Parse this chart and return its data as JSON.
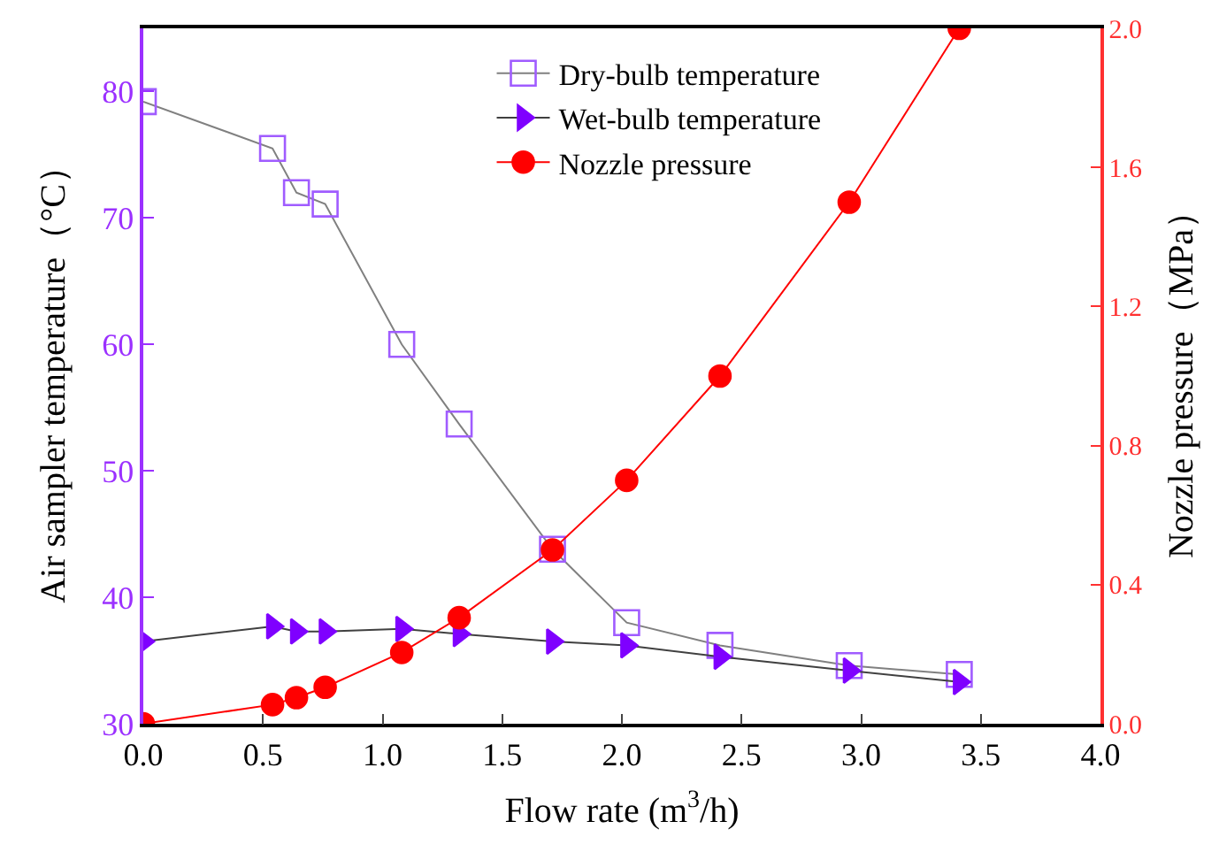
{
  "chart_data": {
    "type": "line",
    "xlabel": "Flow rate (m$^{3}$/h)",
    "ylabel": "Air sampler temperature（°C）",
    "y2label": "Nozzle pressure（MPa）",
    "x": [
      0,
      0.54,
      0.64,
      0.76,
      1.08,
      1.32,
      1.71,
      2.02,
      2.41,
      2.95,
      3.41
    ],
    "series": [
      {
        "name": "Dry-bulb temperature",
        "color": "#a05cff",
        "marker": "square",
        "values": [
          79.2,
          75.5,
          72.0,
          71.1,
          60.0,
          53.7,
          43.8,
          38.0,
          36.2,
          34.6,
          33.9
        ]
      },
      {
        "name": "Wet-bulb temperature",
        "color": "#7f00ff",
        "marker": "triangle",
        "values": [
          36.5,
          37.7,
          37.3,
          37.3,
          37.5,
          37.1,
          36.5,
          36.2,
          35.3,
          34.2,
          33.3
        ]
      },
      {
        "name": "Nozzle pressure",
        "color": "#ff0000",
        "marker": "circle",
        "axis": "y2",
        "values": [
          0.0,
          0.055,
          0.075,
          0.105,
          0.205,
          0.305,
          0.5,
          0.7,
          1.0,
          1.5,
          2.0
        ]
      }
    ],
    "xlim": [
      0,
      4
    ],
    "xticks": [
      {
        "value": 0,
        "label": "0.0"
      },
      {
        "value": 0.5,
        "label": "0.5"
      },
      {
        "value": 1,
        "label": "1.0"
      },
      {
        "value": 1.5,
        "label": "1.5"
      },
      {
        "value": 2,
        "label": "2.0"
      },
      {
        "value": 2.5,
        "label": "2.5"
      },
      {
        "value": 3,
        "label": "3.0"
      },
      {
        "value": 3.5,
        "label": "3.5"
      },
      {
        "value": 4,
        "label": "4.0"
      }
    ],
    "ylim": [
      30,
      85
    ],
    "yticks": [
      30,
      40,
      50,
      60,
      70,
      80
    ],
    "y2lim": [
      0,
      2.0
    ],
    "y2ticks": [
      {
        "value": 0,
        "label": "0.0"
      },
      {
        "value": 0.4,
        "label": "0.4"
      },
      {
        "value": 0.8,
        "label": "0.8"
      },
      {
        "value": 1.2,
        "label": "1.2"
      },
      {
        "value": 1.6,
        "label": "1.6"
      },
      {
        "value": 2.0,
        "label": "2.0"
      }
    ],
    "legend": "top",
    "line_style": "solid"
  }
}
